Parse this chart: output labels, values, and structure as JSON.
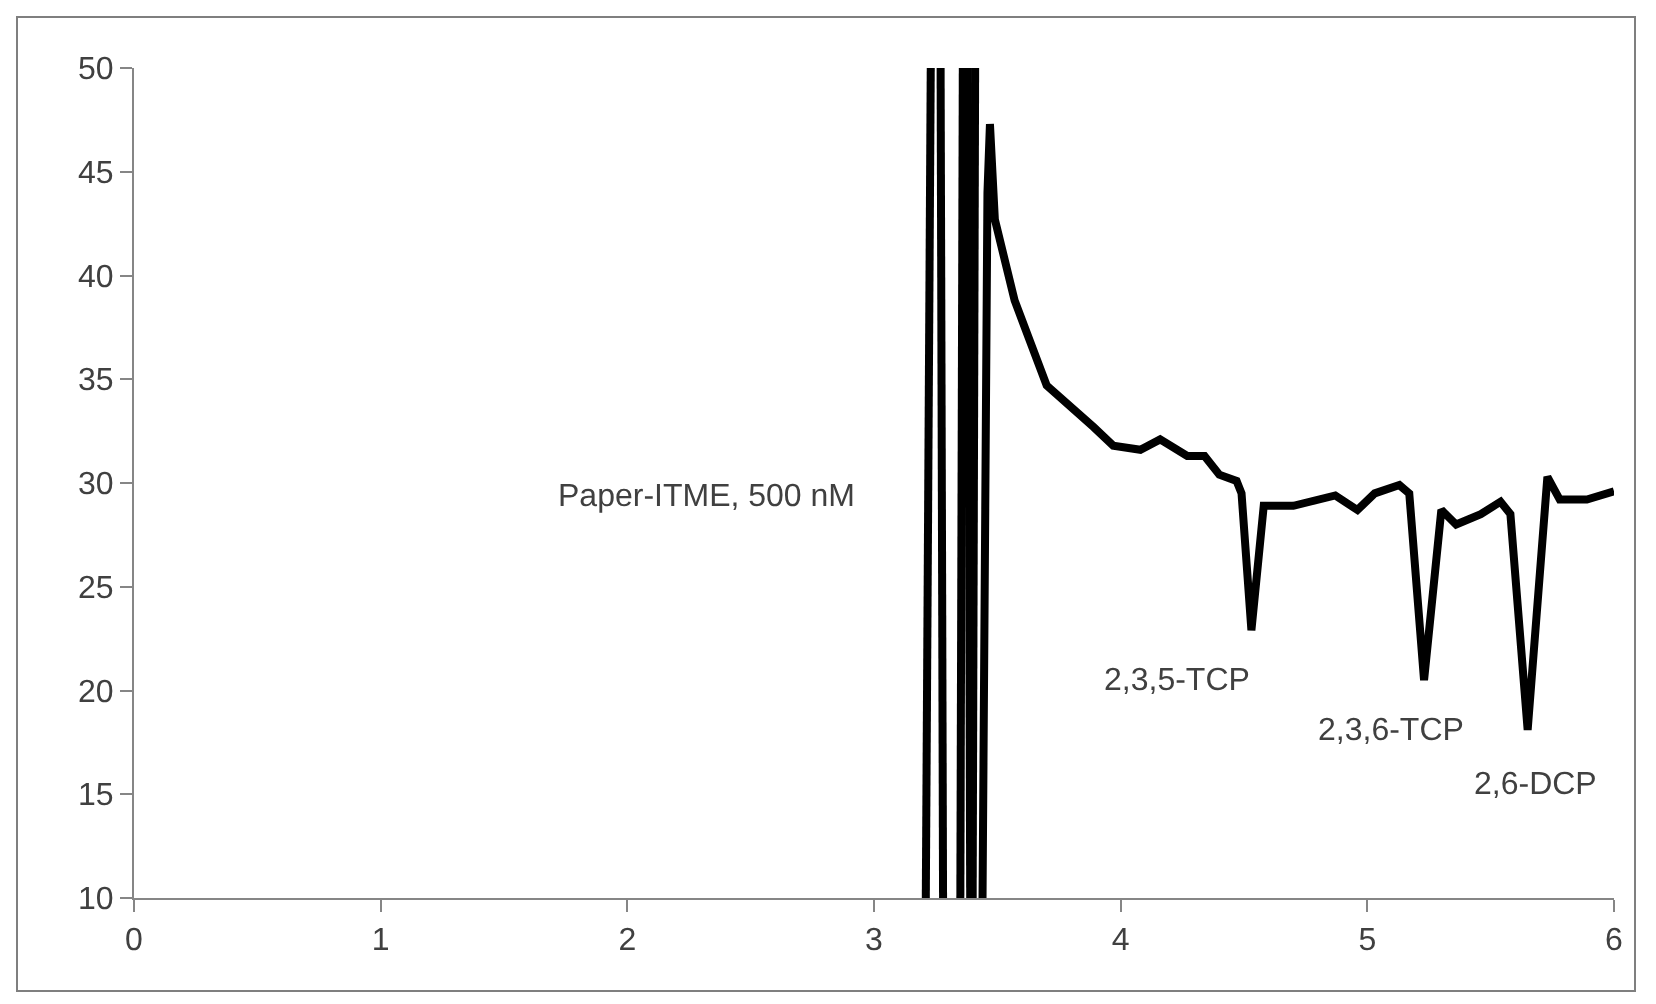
{
  "chart_data": {
    "type": "line",
    "xlim": [
      0,
      6
    ],
    "ylim": [
      10,
      50
    ],
    "xticks": [
      0,
      1,
      2,
      3,
      4,
      5,
      6
    ],
    "yticks": [
      10,
      15,
      20,
      25,
      30,
      35,
      40,
      45,
      50
    ],
    "marker": "none",
    "line_style": "solid",
    "annotations": [
      "Paper-ITME, 500 nM",
      {
        "text": "2,3,5-TCP",
        "x": 4.53,
        "y": 22.9
      },
      {
        "text": "2,3,6-TCP",
        "x": 5.23,
        "y": 20.5
      },
      {
        "text": "2,6-DCP",
        "x": 5.65,
        "y": 18.1
      }
    ],
    "series": [
      {
        "color": "#000000",
        "x": [
          3.21,
          3.23,
          3.24,
          3.27,
          3.28,
          3.29,
          3.35,
          3.36,
          3.37,
          3.38,
          3.39,
          3.395,
          3.4,
          3.41,
          3.415,
          3.44,
          3.46,
          3.47,
          3.49,
          3.57,
          3.7,
          3.89,
          3.97,
          4.08,
          4.16,
          4.27,
          4.34,
          4.4,
          4.47,
          4.49,
          4.53,
          4.58,
          4.7,
          4.87,
          4.96,
          5.03,
          5.13,
          5.17,
          5.23,
          5.3,
          5.36,
          5.46,
          5.54,
          5.58,
          5.65,
          5.73,
          5.78,
          5.89,
          6.0
        ],
        "values": [
          10,
          50,
          null,
          50,
          10,
          null,
          10,
          50,
          null,
          50,
          10,
          null,
          10,
          50,
          null,
          10,
          44,
          47.3,
          42.7,
          38.8,
          34.7,
          32.7,
          31.8,
          31.6,
          32.1,
          31.3,
          31.3,
          30.4,
          30.1,
          29.5,
          22.9,
          28.9,
          28.9,
          29.4,
          28.7,
          29.5,
          29.9,
          29.5,
          20.5,
          28.7,
          28.0,
          28.5,
          29.1,
          28.5,
          18.1,
          30.3,
          29.2,
          29.2,
          29.6
        ]
      }
    ]
  }
}
